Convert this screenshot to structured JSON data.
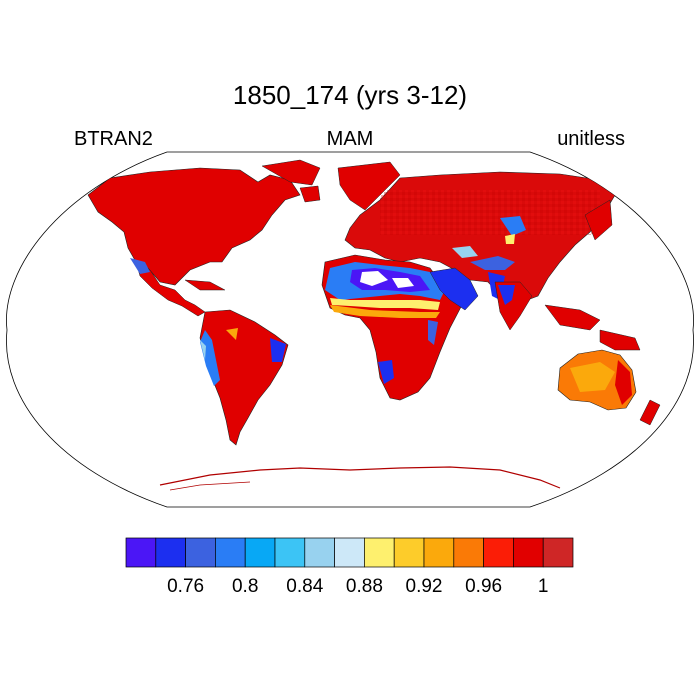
{
  "title": "1850_174 (yrs 3-12)",
  "left_label": "BTRAN2",
  "center_label": "MAM",
  "right_label": "unitless",
  "map": {
    "projection": "robinson",
    "ocean_color": "#ffffff",
    "land_outline_color": "#000000",
    "dominant_land_color": "#dd0000"
  },
  "colorbar": {
    "colors": [
      "#4b16f6",
      "#1c2ff0",
      "#3c62e0",
      "#2a7df5",
      "#08a8f5",
      "#3cc4f5",
      "#98d2ef",
      "#cde8f8",
      "#fef06e",
      "#fdcc2a",
      "#fba90c",
      "#fa7a06",
      "#fb1d06",
      "#e10000",
      "#cf2626"
    ],
    "tick_labels": [
      "0.76",
      "0.8",
      "0.84",
      "0.88",
      "0.92",
      "0.96",
      "1"
    ],
    "tick_after_box": [
      2,
      4,
      6,
      8,
      10,
      12,
      14
    ]
  }
}
